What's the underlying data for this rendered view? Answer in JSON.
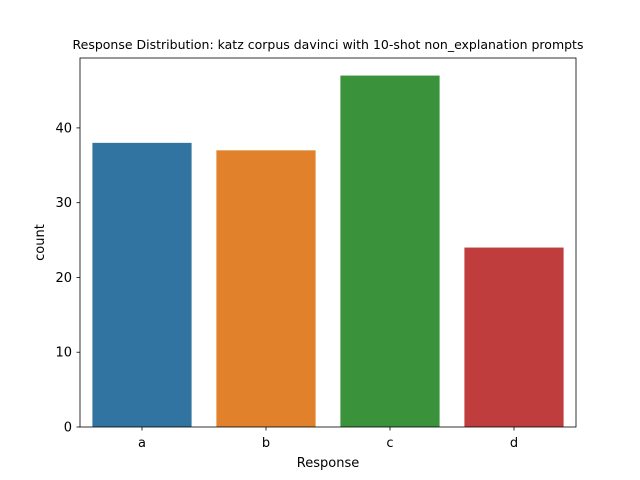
{
  "chart_data": {
    "type": "bar",
    "title": "Response Distribution: katz corpus davinci with 10-shot non_explanation prompts",
    "xlabel": "Response",
    "ylabel": "count",
    "categories": [
      "a",
      "b",
      "c",
      "d"
    ],
    "values": [
      38,
      37,
      47,
      24
    ],
    "colors": [
      "#3274a1",
      "#e1812c",
      "#3a923a",
      "#c03d3e"
    ],
    "ylim": [
      0,
      49.35
    ],
    "yticks": [
      0,
      10,
      20,
      30,
      40
    ],
    "grid": false,
    "legend": "none"
  }
}
